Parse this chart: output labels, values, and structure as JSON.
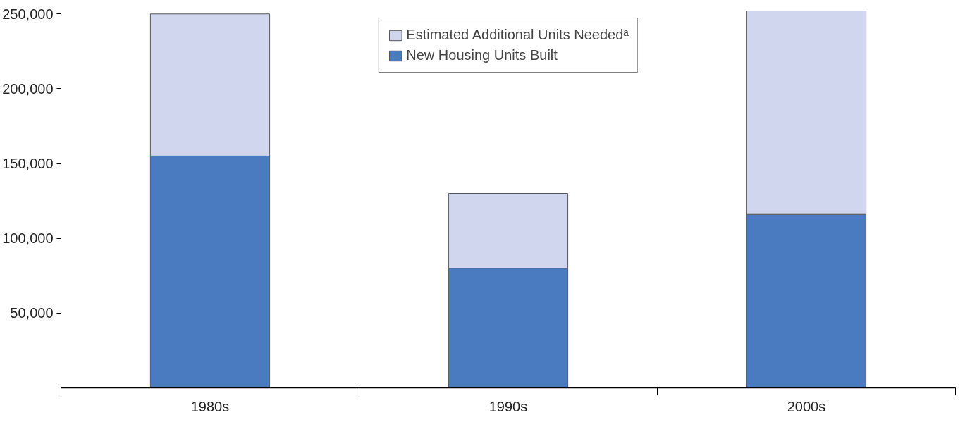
{
  "chart_data": {
    "type": "bar",
    "stacked": true,
    "categories": [
      "1980s",
      "1990s",
      "2000s"
    ],
    "series": [
      {
        "name": "New Housing Units Built",
        "color": "#4a7abf",
        "values": [
          155000,
          80000,
          116000
        ]
      },
      {
        "name": "Estimated Additional Units Neededᵃ",
        "color": "#d0d6ee",
        "values": [
          95000,
          50000,
          136000
        ]
      }
    ],
    "ylim": [
      0,
      252000
    ],
    "yticks": [
      {
        "value": 50000,
        "label": "50,000"
      },
      {
        "value": 100000,
        "label": "100,000"
      },
      {
        "value": 150000,
        "label": "150,000"
      },
      {
        "value": 200000,
        "label": "200,000"
      },
      {
        "value": 250000,
        "label": "250,000"
      }
    ],
    "grid": false,
    "legend": "top"
  }
}
